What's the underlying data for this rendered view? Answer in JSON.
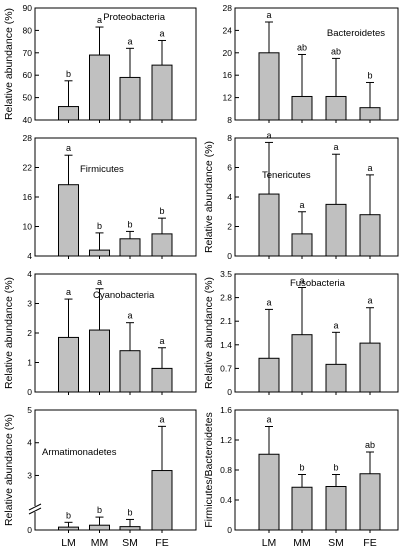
{
  "chart_data": [
    {
      "type": "bar",
      "title": "Proteobacteria",
      "categories": [
        "LM",
        "MM",
        "SM",
        "FE"
      ],
      "values": [
        46,
        69,
        59,
        64.5
      ],
      "errors": [
        11.5,
        12.5,
        13,
        11
      ],
      "significance": [
        "b",
        "a",
        "a",
        "a"
      ],
      "ylim": [
        40,
        90
      ],
      "yticks": [
        40,
        50,
        60,
        70,
        80,
        90
      ],
      "ylabel": "Relative abundance (%)"
    },
    {
      "type": "bar",
      "title": "Bacteroidetes",
      "categories": [
        "LM",
        "MM",
        "SM",
        "FE"
      ],
      "values": [
        20,
        12.2,
        12.2,
        10.2
      ],
      "errors": [
        5.5,
        7.5,
        6.8,
        4.5
      ],
      "significance": [
        "a",
        "ab",
        "ab",
        "b"
      ],
      "ylim": [
        8,
        28
      ],
      "yticks": [
        8,
        12,
        16,
        20,
        24,
        28
      ],
      "ylabel": ""
    },
    {
      "type": "bar",
      "title": "Firmicutes",
      "categories": [
        "LM",
        "MM",
        "SM",
        "FE"
      ],
      "values": [
        18.5,
        5.2,
        7.5,
        8.5
      ],
      "errors": [
        6,
        3.5,
        1.5,
        3.2
      ],
      "significance": [
        "a",
        "b",
        "b",
        "b"
      ],
      "ylim": [
        4,
        28
      ],
      "yticks": [
        4,
        10,
        16,
        22,
        28
      ],
      "ylabel": ""
    },
    {
      "type": "bar",
      "title": "Tenericutes",
      "categories": [
        "LM",
        "MM",
        "SM",
        "FE"
      ],
      "values": [
        4.2,
        1.5,
        3.5,
        2.8
      ],
      "errors": [
        3.5,
        1.5,
        3.4,
        2.7
      ],
      "significance": [
        "a",
        "a",
        "a",
        "a"
      ],
      "ylim": [
        0,
        8
      ],
      "yticks": [
        0,
        2,
        4,
        6,
        8
      ],
      "ylabel": "Relative abundance (%)"
    },
    {
      "type": "bar",
      "title": "Cyanobacteria",
      "categories": [
        "LM",
        "MM",
        "SM",
        "FE"
      ],
      "values": [
        1.85,
        2.1,
        1.4,
        0.8
      ],
      "errors": [
        1.3,
        1.4,
        0.95,
        0.7
      ],
      "significance": [
        "a",
        "a",
        "a",
        "a"
      ],
      "ylim": [
        0,
        4
      ],
      "yticks": [
        0,
        1,
        2,
        3,
        4
      ],
      "ylabel": "Relative abundance (%)"
    },
    {
      "type": "bar",
      "title": "Fusobacteria",
      "categories": [
        "LM",
        "MM",
        "SM",
        "FE"
      ],
      "values": [
        1.0,
        1.7,
        0.82,
        1.45
      ],
      "errors": [
        1.45,
        1.4,
        0.95,
        1.05
      ],
      "significance": [
        "a",
        "a",
        "a",
        "a"
      ],
      "ylim": [
        0,
        3.5
      ],
      "yticks": [
        0,
        0.7,
        1.4,
        2.1,
        2.8,
        3.5
      ],
      "ylabel": "Relative abundance (%)"
    },
    {
      "type": "bar",
      "title": "Armatimonadetes",
      "categories": [
        "LM",
        "MM",
        "SM",
        "FE"
      ],
      "values": [
        0.06,
        0.1,
        0.07,
        3.15
      ],
      "errors": [
        0.1,
        0.25,
        0.15,
        1.35
      ],
      "significance": [
        "b",
        "b",
        "b",
        "a"
      ],
      "ylim": [
        0,
        5
      ],
      "yticks": [
        0,
        3,
        4,
        5
      ],
      "axis_break": [
        0.25,
        2.25
      ],
      "ylabel": "Relative abundance (%)"
    },
    {
      "type": "bar",
      "title": "",
      "categories": [
        "LM",
        "MM",
        "SM",
        "FE"
      ],
      "values": [
        1.01,
        0.57,
        0.58,
        0.75
      ],
      "errors": [
        0.37,
        0.17,
        0.16,
        0.29
      ],
      "significance": [
        "a",
        "b",
        "b",
        "ab"
      ],
      "ylim": [
        0,
        1.6
      ],
      "yticks": [
        0,
        0.4,
        0.8,
        1.2,
        1.6
      ],
      "ylabel": "Firmicutes/Bacteroidetes"
    }
  ],
  "colors": {
    "bar_fill": "#c0c0c0",
    "stroke": "#000000"
  }
}
